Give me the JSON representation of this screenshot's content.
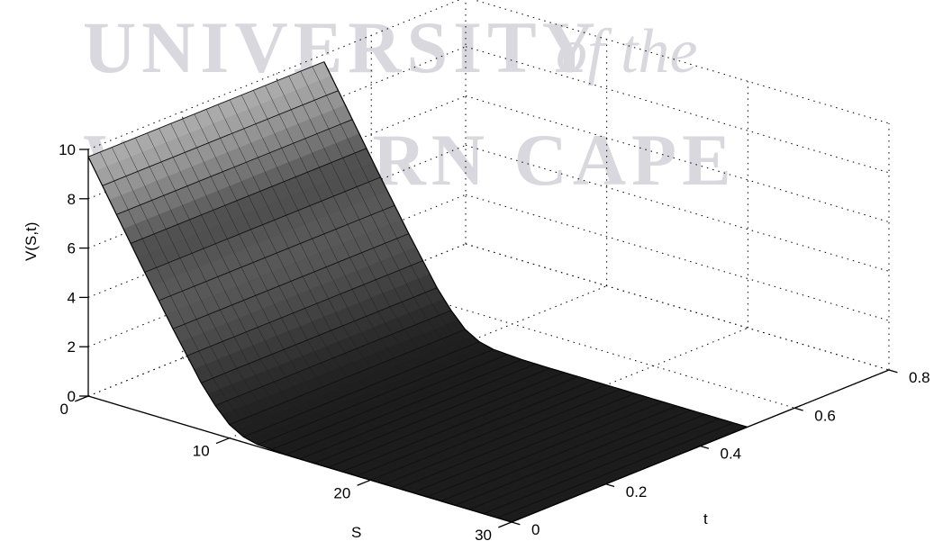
{
  "watermark": {
    "line1": "UNIVERSITY",
    "line1_suffix": "of the",
    "line2": "WESTERN CAPE"
  },
  "chart_data": {
    "type": "surface",
    "xlabel": "S",
    "ylabel": "t",
    "zlabel": "V(S,t)",
    "xlim": [
      0,
      30
    ],
    "ylim": [
      0,
      0.8
    ],
    "zlim": [
      0,
      10
    ],
    "xticks": [
      "0",
      "10",
      "20",
      "30"
    ],
    "yticks": [
      "0",
      "0.2",
      "0.4",
      "0.6",
      "0.8"
    ],
    "zticks": [
      "0",
      "2",
      "4",
      "6",
      "8",
      "10"
    ],
    "grid": true,
    "surface_extent": {
      "S": [
        0,
        30
      ],
      "t": [
        0,
        0.5
      ]
    },
    "strike": 10,
    "profile": {
      "S": [
        0,
        2,
        4,
        6,
        8,
        9,
        10,
        11,
        12,
        14,
        16,
        20,
        30
      ],
      "V": [
        9.7,
        7.7,
        5.7,
        3.75,
        1.9,
        1.15,
        0.55,
        0.22,
        0.08,
        0.01,
        0,
        0,
        0
      ]
    },
    "colormap": "gray",
    "mesh_lines_S": 30,
    "mesh_lines_t": 20
  }
}
